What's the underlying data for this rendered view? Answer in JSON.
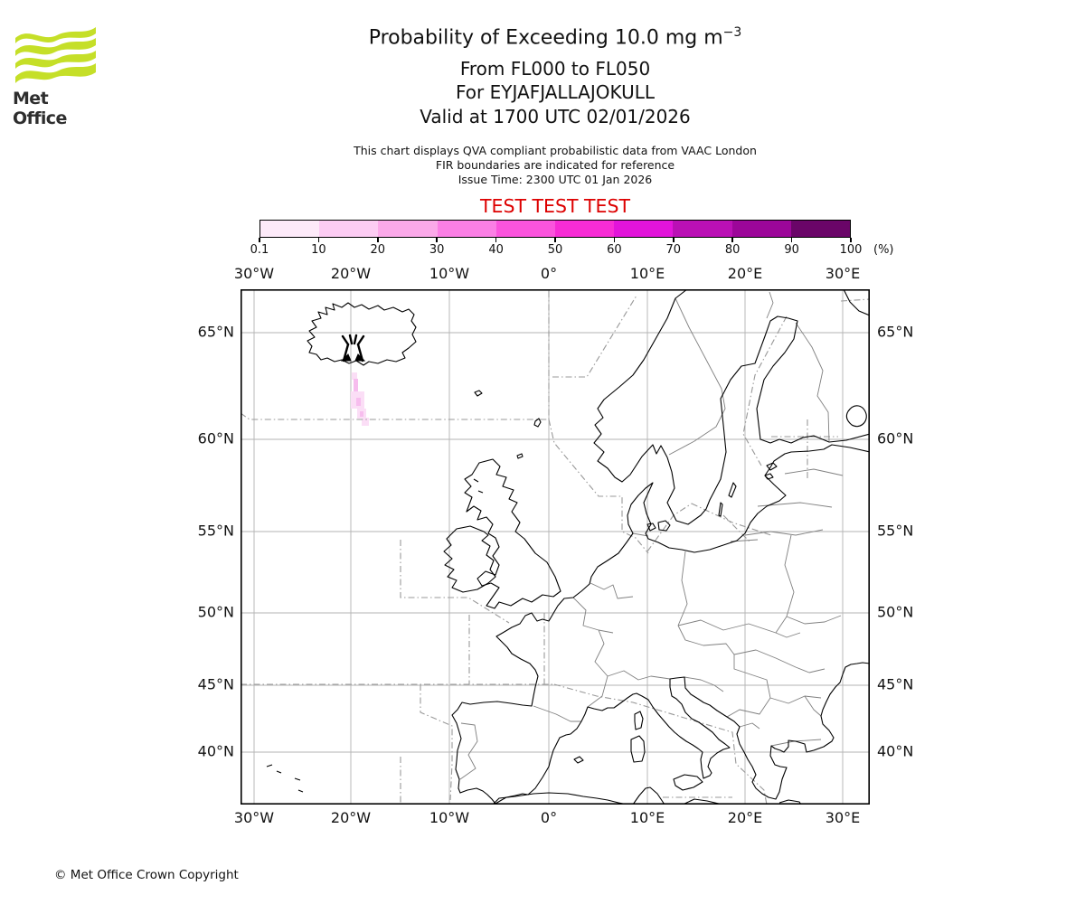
{
  "logo": {
    "text": "Met Office",
    "wave_color": "#c5df28"
  },
  "header": {
    "title": "Probability of Exceeding 10.0 mg m",
    "title_exponent": "−3",
    "subtitle_level": "From FL000 to FL050",
    "subtitle_volcano": "For EYJAFJALLAJOKULL",
    "subtitle_valid": "Valid at 1700 UTC 02/01/2026",
    "note_line1": "This chart displays QVA compliant probabilistic data from VAAC London",
    "note_line2": "FIR boundaries are indicated for reference",
    "note_line3": "Issue Time: 2300 UTC 01 Jan 2026",
    "test_banner": "TEST TEST TEST",
    "test_color": "#dd0000"
  },
  "legend": {
    "unit": "(%)",
    "tick_labels": [
      "0.1",
      "10",
      "20",
      "30",
      "40",
      "50",
      "60",
      "70",
      "80",
      "90",
      "100"
    ],
    "segment_colors": [
      "#fdeaf9",
      "#fcccf3",
      "#fba9e9",
      "#fb7fe5",
      "#fb54dd",
      "#f72cd5",
      "#e214da",
      "#ba10b5",
      "#9c0699",
      "#6a0568"
    ]
  },
  "map": {
    "top_axis": [
      "30°W",
      "20°W",
      "10°W",
      "0°",
      "10°E",
      "20°E",
      "30°E"
    ],
    "bottom_axis": [
      "30°W",
      "20°W",
      "10°W",
      "0°",
      "10°E",
      "20°E",
      "30°E"
    ],
    "left_axis": [
      "65°N",
      "60°N",
      "55°N",
      "50°N",
      "45°N",
      "40°N"
    ],
    "right_axis": [
      "65°N",
      "60°N",
      "55°N",
      "50°N",
      "45°N",
      "40°N"
    ],
    "plume_colors": {
      "low": "#fbdef6",
      "mid": "#f7bdee"
    }
  },
  "footer": {
    "copyright": "© Met Office Crown Copyright"
  }
}
